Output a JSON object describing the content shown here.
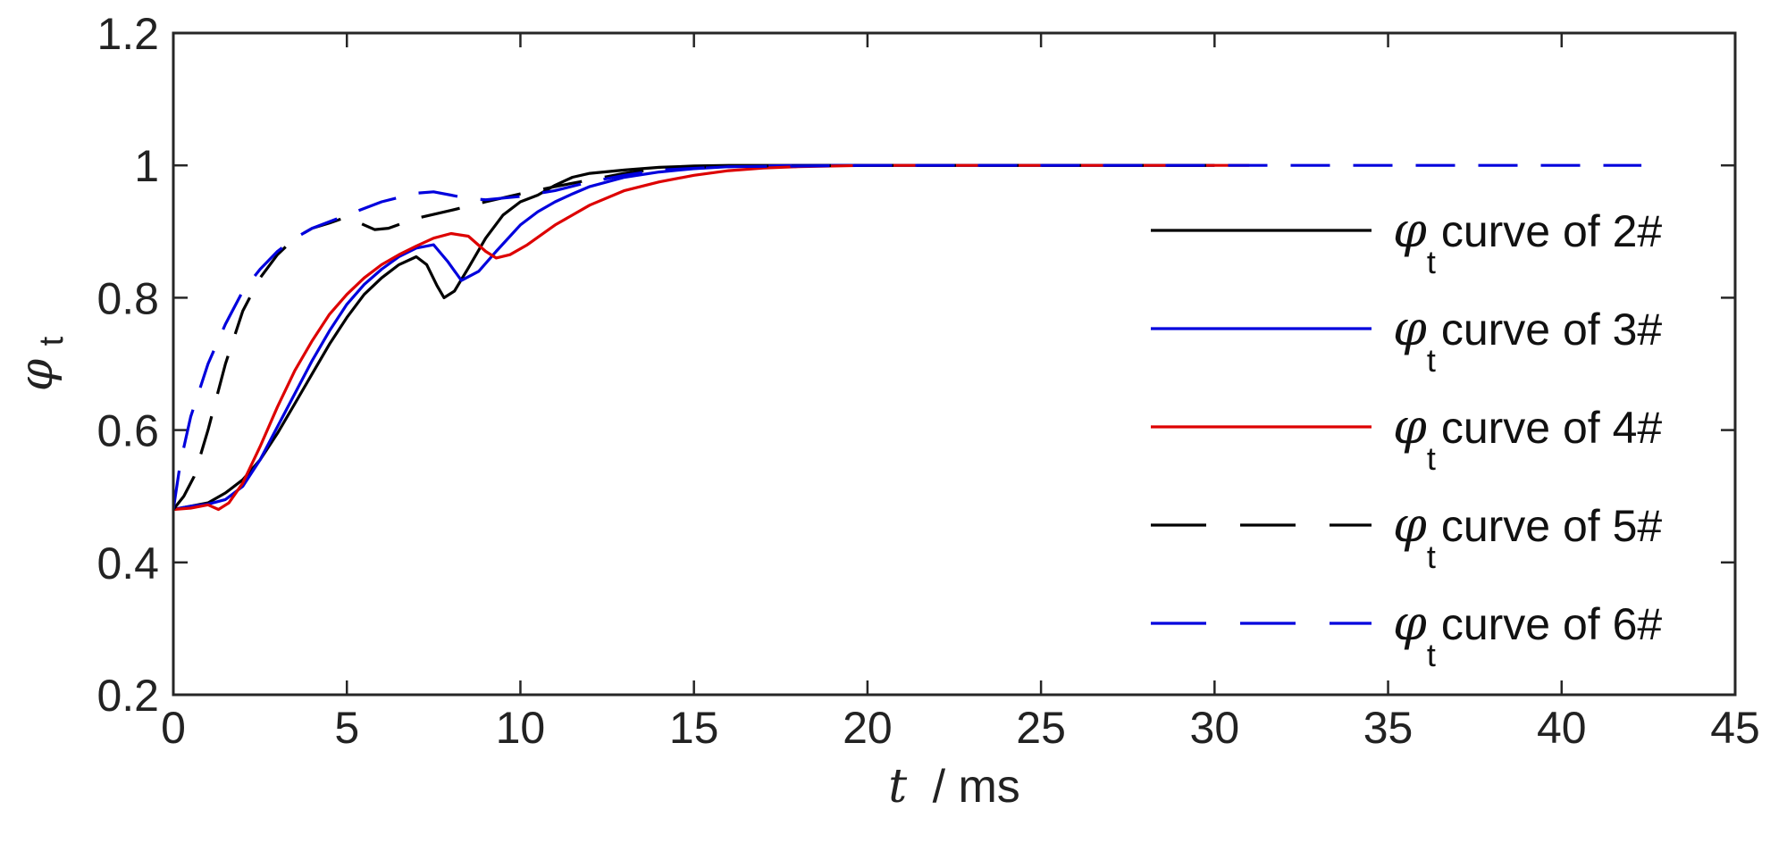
{
  "chart_data": {
    "type": "line",
    "xlabel": "t / ms",
    "ylabel": "φt",
    "xlabel_var": "t",
    "xlabel_unit": "/ ms",
    "ylabel_symbol": "φ",
    "ylabel_sub": "t",
    "xlim": [
      0,
      45
    ],
    "ylim": [
      0.2,
      1.2
    ],
    "x_ticks": [
      "0",
      "5",
      "10",
      "15",
      "20",
      "25",
      "30",
      "35",
      "40",
      "45"
    ],
    "y_ticks": [
      "0.2",
      "0.4",
      "0.6",
      "0.8",
      "1",
      "1.2"
    ],
    "grid": false,
    "legend_position": "right",
    "series": [
      {
        "name": "φt curve of 2#",
        "legend_symbol": "φ",
        "legend_sub": "t",
        "legend_rest": "curve of 2#",
        "color": "#000000",
        "dash": "solid",
        "x": [
          0,
          0.5,
          1,
          1.5,
          2,
          2.5,
          3,
          3.5,
          4,
          4.5,
          5,
          5.5,
          6,
          6.5,
          7,
          7.3,
          7.6,
          7.8,
          8.1,
          8.5,
          9,
          9.5,
          10,
          10.5,
          11,
          11.5,
          12,
          13,
          14,
          15,
          16,
          18,
          20,
          30
        ],
        "y": [
          0.48,
          0.485,
          0.49,
          0.505,
          0.525,
          0.555,
          0.595,
          0.64,
          0.685,
          0.73,
          0.77,
          0.805,
          0.83,
          0.85,
          0.862,
          0.85,
          0.818,
          0.8,
          0.81,
          0.845,
          0.89,
          0.925,
          0.945,
          0.955,
          0.97,
          0.982,
          0.988,
          0.993,
          0.997,
          0.999,
          1.0,
          1.0,
          1.0,
          1.0
        ]
      },
      {
        "name": "φt curve of 3#",
        "legend_symbol": "φ",
        "legend_sub": "t",
        "legend_rest": "curve of 3#",
        "color": "#0000dd",
        "dash": "solid",
        "x": [
          0,
          0.5,
          1,
          1.5,
          2,
          2.5,
          3,
          3.5,
          4,
          4.5,
          5,
          5.5,
          6,
          6.5,
          7,
          7.5,
          7.9,
          8.3,
          8.8,
          9.3,
          10,
          10.5,
          11,
          11.5,
          12,
          13,
          14,
          15,
          16,
          18,
          20,
          30
        ],
        "y": [
          0.48,
          0.485,
          0.488,
          0.495,
          0.515,
          0.555,
          0.605,
          0.655,
          0.705,
          0.75,
          0.79,
          0.82,
          0.843,
          0.862,
          0.875,
          0.88,
          0.855,
          0.826,
          0.84,
          0.87,
          0.91,
          0.93,
          0.945,
          0.957,
          0.968,
          0.982,
          0.99,
          0.995,
          0.998,
          1.0,
          1.0,
          1.0
        ]
      },
      {
        "name": "φt curve of 4#",
        "legend_symbol": "φ",
        "legend_sub": "t",
        "legend_rest": "curve of 4#",
        "color": "#dd0000",
        "dash": "solid",
        "x": [
          0,
          0.5,
          1,
          1.3,
          1.6,
          2,
          2.5,
          3,
          3.5,
          4,
          4.5,
          5,
          5.5,
          6,
          6.5,
          7,
          7.5,
          8,
          8.5,
          9,
          9.3,
          9.7,
          10.2,
          11,
          12,
          13,
          14,
          15,
          16,
          17,
          18,
          20,
          31
        ],
        "y": [
          0.48,
          0.482,
          0.487,
          0.48,
          0.49,
          0.52,
          0.575,
          0.635,
          0.69,
          0.735,
          0.775,
          0.805,
          0.83,
          0.85,
          0.865,
          0.878,
          0.89,
          0.897,
          0.893,
          0.87,
          0.86,
          0.865,
          0.88,
          0.91,
          0.94,
          0.962,
          0.975,
          0.985,
          0.992,
          0.996,
          0.998,
          1.0,
          1.0
        ]
      },
      {
        "name": "φt curve of 5#",
        "legend_symbol": "φ",
        "legend_sub": "t",
        "legend_rest": "curve of 5#",
        "color": "#000000",
        "dash": "dashed",
        "x": [
          0,
          0.3,
          0.6,
          1,
          1.5,
          2,
          2.5,
          3,
          3.5,
          4,
          4.5,
          5,
          5.5,
          5.8,
          6.2,
          7,
          8,
          9,
          10,
          11,
          12,
          13,
          14,
          16,
          20,
          30
        ],
        "y": [
          0.48,
          0.5,
          0.53,
          0.6,
          0.7,
          0.78,
          0.83,
          0.865,
          0.89,
          0.905,
          0.913,
          0.922,
          0.91,
          0.903,
          0.905,
          0.92,
          0.932,
          0.945,
          0.957,
          0.968,
          0.978,
          0.988,
          0.995,
          0.999,
          1.0,
          1.0
        ]
      },
      {
        "name": "φt curve of 6#",
        "legend_symbol": "φ",
        "legend_sub": "t",
        "legend_rest": "curve of 6#",
        "color": "#0000dd",
        "dash": "dashed",
        "x": [
          0,
          0.2,
          0.5,
          1,
          1.5,
          2,
          2.5,
          3,
          3.5,
          4,
          5,
          6,
          7,
          7.5,
          8,
          8.5,
          9,
          10,
          11,
          12,
          13,
          14,
          16,
          20,
          30,
          42.3
        ],
        "y": [
          0.48,
          0.55,
          0.62,
          0.7,
          0.76,
          0.81,
          0.843,
          0.87,
          0.89,
          0.905,
          0.925,
          0.945,
          0.958,
          0.96,
          0.955,
          0.95,
          0.948,
          0.953,
          0.962,
          0.975,
          0.985,
          0.993,
          0.998,
          1.0,
          1.0,
          1.0
        ]
      }
    ]
  }
}
